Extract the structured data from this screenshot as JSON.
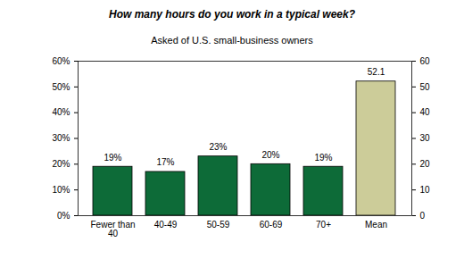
{
  "chart_data": {
    "type": "bar",
    "title": "How many hours do you work in a typical week?",
    "subtitle": "Asked of U.S. small-business owners",
    "categories": [
      "Fewer than 40",
      "40-49",
      "50-59",
      "60-69",
      "70+",
      "Mean"
    ],
    "series": [
      {
        "color": "#0d6b38",
        "values": [
          19,
          17,
          23,
          20,
          19,
          null
        ],
        "value_labels": [
          "19%",
          "17%",
          "23%",
          "20%",
          "19%",
          null
        ]
      },
      {
        "color": "#cccc99",
        "axis": "y2",
        "values": [
          null,
          null,
          null,
          null,
          null,
          52.1
        ]
      }
    ],
    "ylim": [
      0,
      60
    ],
    "yticks": [
      {
        "value": 0,
        "label": "0%"
      },
      {
        "value": 10,
        "label": "10%"
      },
      {
        "value": 20,
        "label": "20%"
      },
      {
        "value": 30,
        "label": "30%"
      },
      {
        "value": 40,
        "label": "40%"
      },
      {
        "value": 50,
        "label": "50%"
      },
      {
        "value": 60,
        "label": "60%"
      }
    ],
    "y2lim": [
      0,
      60
    ],
    "y2ticks": [
      0,
      10,
      20,
      30,
      40,
      50,
      60
    ],
    "data_labels": true
  }
}
